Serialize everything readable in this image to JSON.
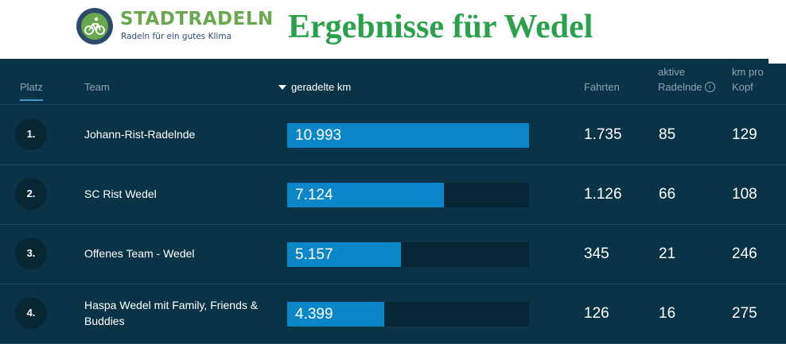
{
  "header": {
    "brand": "STADTRADELN",
    "tagline": "Radeln für ein gutes Klima",
    "title": "Ergebnisse für Wedel",
    "brand_color": "#6aa84f",
    "title_color": "#2aa24c"
  },
  "table": {
    "columns": {
      "platz": "Platz",
      "team": "Team",
      "km": "geradelte km",
      "fahrten": "Fahrten",
      "aktive_line1": "aktive",
      "aktive_line2": "Radelnde",
      "kopf_line1": "km pro",
      "kopf_line2": "Kopf"
    },
    "sort_icon": "sort-desc-icon",
    "info_icon": "info-icon",
    "max_km": 10993,
    "rows": [
      {
        "rank": "1.",
        "team": "Johann-Rist-Radelnde",
        "km": "10.993",
        "km_value": 10993,
        "fahrten": "1.735",
        "aktive": "85",
        "kopf": "129"
      },
      {
        "rank": "2.",
        "team": "SC Rist Wedel",
        "km": "7.124",
        "km_value": 7124,
        "fahrten": "1.126",
        "aktive": "66",
        "kopf": "108"
      },
      {
        "rank": "3.",
        "team": "Offenes Team - Wedel",
        "km": "5.157",
        "km_value": 5157,
        "fahrten": "345",
        "aktive": "21",
        "kopf": "246"
      },
      {
        "rank": "4.",
        "team": "Haspa Wedel mit Family, Friends & Buddies",
        "km": "4.399",
        "km_value": 4399,
        "fahrten": "126",
        "aktive": "16",
        "kopf": "275"
      }
    ]
  },
  "colors": {
    "panel": "#0b3347",
    "bar": "#0a86c9",
    "track": "#072634"
  }
}
